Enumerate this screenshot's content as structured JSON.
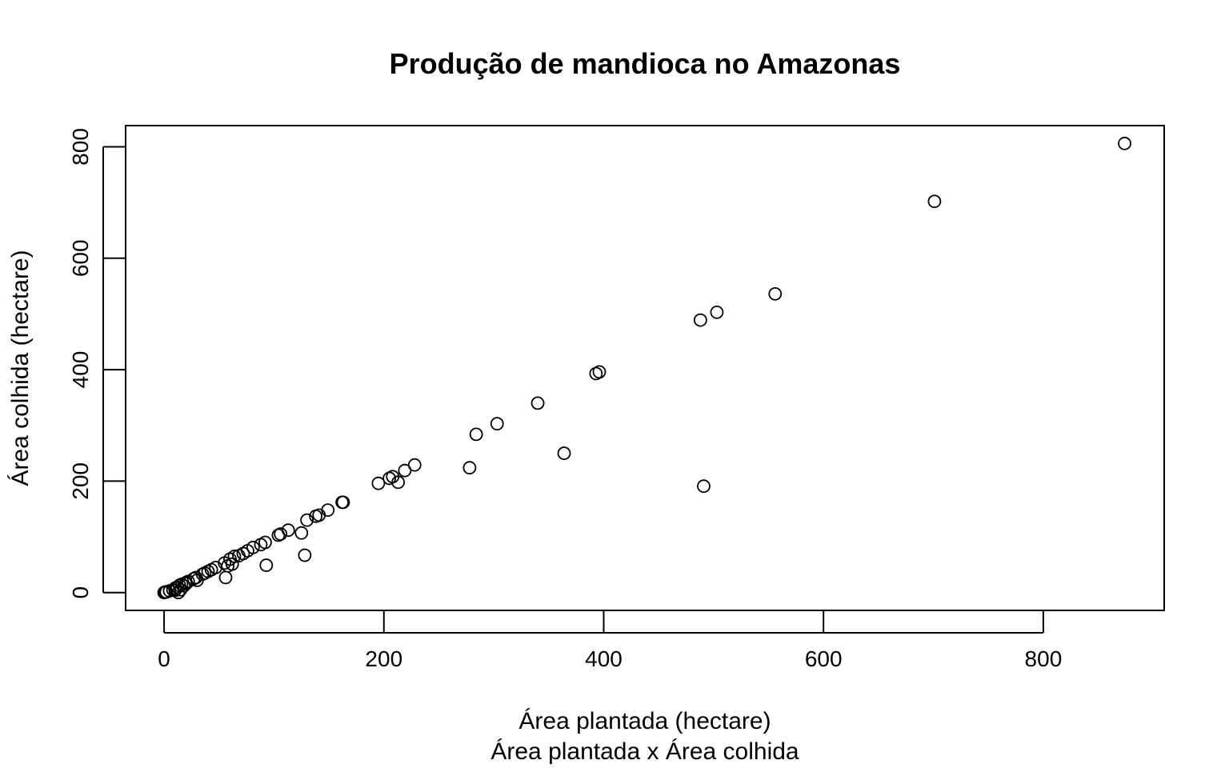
{
  "chart_data": {
    "type": "scatter",
    "title": "Produção de mandioca no Amazonas",
    "xlabel": "Área plantada (hectare)",
    "subtitle": "Área plantada x Área colhida",
    "ylabel": "Área colhida (hectare)",
    "xlim": [
      -35,
      910
    ],
    "ylim": [
      -32,
      838
    ],
    "x_ticks": [
      0,
      200,
      400,
      600,
      800
    ],
    "y_ticks": [
      0,
      200,
      400,
      600,
      800
    ],
    "x_tick_labels": [
      "0",
      "200",
      "400",
      "600",
      "800"
    ],
    "y_tick_labels": [
      "0",
      "200",
      "400",
      "600",
      "800"
    ],
    "grid": false,
    "legend": "none",
    "colors": {
      "point": "#000000",
      "axis": "#000000",
      "background": "#ffffff"
    },
    "points": [
      {
        "x": 0,
        "y": 0
      },
      {
        "x": 1,
        "y": 1
      },
      {
        "x": 2,
        "y": 1
      },
      {
        "x": 5,
        "y": 3
      },
      {
        "x": 8,
        "y": 5
      },
      {
        "x": 10,
        "y": 8
      },
      {
        "x": 10,
        "y": 4
      },
      {
        "x": 12,
        "y": 10
      },
      {
        "x": 13,
        "y": 0
      },
      {
        "x": 14,
        "y": 13
      },
      {
        "x": 15,
        "y": 5
      },
      {
        "x": 16,
        "y": 15
      },
      {
        "x": 18,
        "y": 12
      },
      {
        "x": 20,
        "y": 18
      },
      {
        "x": 20,
        "y": 16
      },
      {
        "x": 22,
        "y": 20
      },
      {
        "x": 27,
        "y": 25
      },
      {
        "x": 29,
        "y": 27
      },
      {
        "x": 30,
        "y": 22
      },
      {
        "x": 35,
        "y": 33
      },
      {
        "x": 37,
        "y": 35
      },
      {
        "x": 40,
        "y": 38
      },
      {
        "x": 43,
        "y": 41
      },
      {
        "x": 47,
        "y": 45
      },
      {
        "x": 55,
        "y": 53
      },
      {
        "x": 56,
        "y": 27
      },
      {
        "x": 58,
        "y": 48
      },
      {
        "x": 60,
        "y": 60
      },
      {
        "x": 62,
        "y": 51
      },
      {
        "x": 64,
        "y": 65
      },
      {
        "x": 68,
        "y": 66
      },
      {
        "x": 72,
        "y": 70
      },
      {
        "x": 76,
        "y": 75
      },
      {
        "x": 81,
        "y": 81
      },
      {
        "x": 88,
        "y": 86
      },
      {
        "x": 92,
        "y": 90
      },
      {
        "x": 93,
        "y": 49
      },
      {
        "x": 104,
        "y": 103
      },
      {
        "x": 106,
        "y": 105
      },
      {
        "x": 113,
        "y": 112
      },
      {
        "x": 125,
        "y": 107
      },
      {
        "x": 128,
        "y": 67
      },
      {
        "x": 130,
        "y": 130
      },
      {
        "x": 138,
        "y": 137
      },
      {
        "x": 141,
        "y": 139
      },
      {
        "x": 149,
        "y": 148
      },
      {
        "x": 162,
        "y": 162
      },
      {
        "x": 163,
        "y": 162
      },
      {
        "x": 195,
        "y": 196
      },
      {
        "x": 205,
        "y": 205
      },
      {
        "x": 208,
        "y": 208
      },
      {
        "x": 213,
        "y": 198
      },
      {
        "x": 219,
        "y": 219
      },
      {
        "x": 228,
        "y": 229
      },
      {
        "x": 278,
        "y": 224
      },
      {
        "x": 284,
        "y": 284
      },
      {
        "x": 303,
        "y": 303
      },
      {
        "x": 340,
        "y": 340
      },
      {
        "x": 364,
        "y": 250
      },
      {
        "x": 393,
        "y": 393
      },
      {
        "x": 396,
        "y": 396
      },
      {
        "x": 488,
        "y": 489
      },
      {
        "x": 491,
        "y": 191
      },
      {
        "x": 503,
        "y": 503
      },
      {
        "x": 556,
        "y": 536
      },
      {
        "x": 701,
        "y": 702
      },
      {
        "x": 874,
        "y": 806
      }
    ]
  }
}
